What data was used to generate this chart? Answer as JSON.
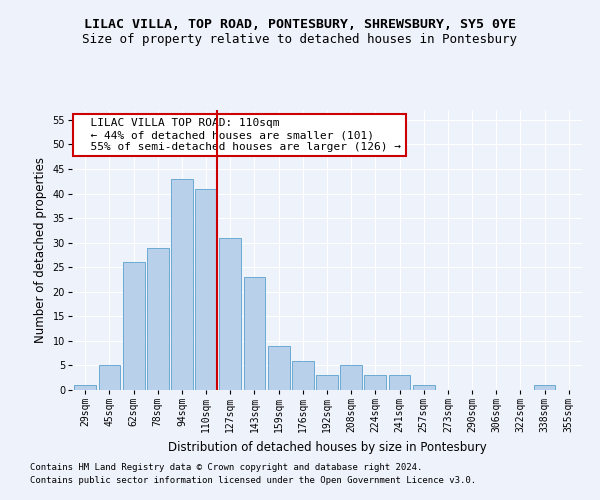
{
  "title": "LILAC VILLA, TOP ROAD, PONTESBURY, SHREWSBURY, SY5 0YE",
  "subtitle": "Size of property relative to detached houses in Pontesbury",
  "xlabel": "Distribution of detached houses by size in Pontesbury",
  "ylabel": "Number of detached properties",
  "categories": [
    "29sqm",
    "45sqm",
    "62sqm",
    "78sqm",
    "94sqm",
    "110sqm",
    "127sqm",
    "143sqm",
    "159sqm",
    "176sqm",
    "192sqm",
    "208sqm",
    "224sqm",
    "241sqm",
    "257sqm",
    "273sqm",
    "290sqm",
    "306sqm",
    "322sqm",
    "338sqm",
    "355sqm"
  ],
  "values": [
    1,
    5,
    26,
    29,
    43,
    41,
    31,
    23,
    9,
    6,
    3,
    5,
    3,
    3,
    1,
    0,
    0,
    0,
    0,
    1,
    0
  ],
  "bar_color": "#b8d0ea",
  "bar_edge_color": "#6aaad4",
  "highlight_index": 5,
  "red_line_color": "#cc0000",
  "annotation_text": "  LILAC VILLA TOP ROAD: 110sqm\n  ← 44% of detached houses are smaller (101)\n  55% of semi-detached houses are larger (126) →",
  "annotation_box_color": "#ffffff",
  "annotation_box_edge": "#cc0000",
  "ylim": [
    0,
    57
  ],
  "yticks": [
    0,
    5,
    10,
    15,
    20,
    25,
    30,
    35,
    40,
    45,
    50,
    55
  ],
  "footnote1": "Contains HM Land Registry data © Crown copyright and database right 2024.",
  "footnote2": "Contains public sector information licensed under the Open Government Licence v3.0.",
  "bg_color": "#eef2fb",
  "grid_color": "#ffffff",
  "title_fontsize": 9.5,
  "subtitle_fontsize": 9,
  "axis_label_fontsize": 8.5,
  "tick_fontsize": 7,
  "annotation_fontsize": 8,
  "footnote_fontsize": 6.5
}
